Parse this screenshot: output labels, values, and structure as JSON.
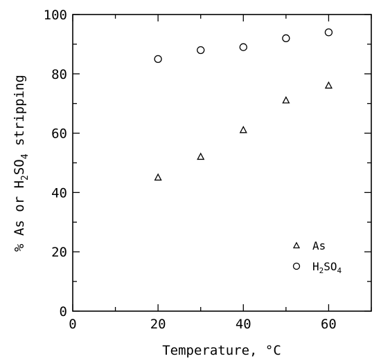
{
  "chart_data": {
    "type": "scatter",
    "title": "",
    "xlabel": "Temperature, °C",
    "ylabel": {
      "pre": "% As or H",
      "sub1": "2",
      "mid": "SO",
      "sub2": "4",
      "post": " stripping"
    },
    "xlim": [
      0,
      70
    ],
    "ylim": [
      0,
      100
    ],
    "x_ticks_major": [
      0,
      20,
      40,
      60
    ],
    "x_ticks_minor": [
      10,
      30,
      50,
      70
    ],
    "y_ticks_major": [
      0,
      20,
      40,
      60,
      80,
      100
    ],
    "y_ticks_minor": [
      10,
      30,
      50,
      70,
      90
    ],
    "grid": false,
    "legend_position": "bottom-right",
    "series": [
      {
        "name": "As",
        "marker": "triangle",
        "x": [
          20,
          30,
          40,
          50,
          60
        ],
        "y": [
          45,
          52,
          61,
          71,
          76
        ]
      },
      {
        "name": "H2SO4",
        "name_parts": {
          "pre": "H",
          "sub1": "2",
          "mid": "SO",
          "sub2": "4"
        },
        "marker": "circle",
        "x": [
          20,
          30,
          40,
          50,
          60
        ],
        "y": [
          85,
          88,
          89,
          92,
          94
        ]
      }
    ]
  }
}
